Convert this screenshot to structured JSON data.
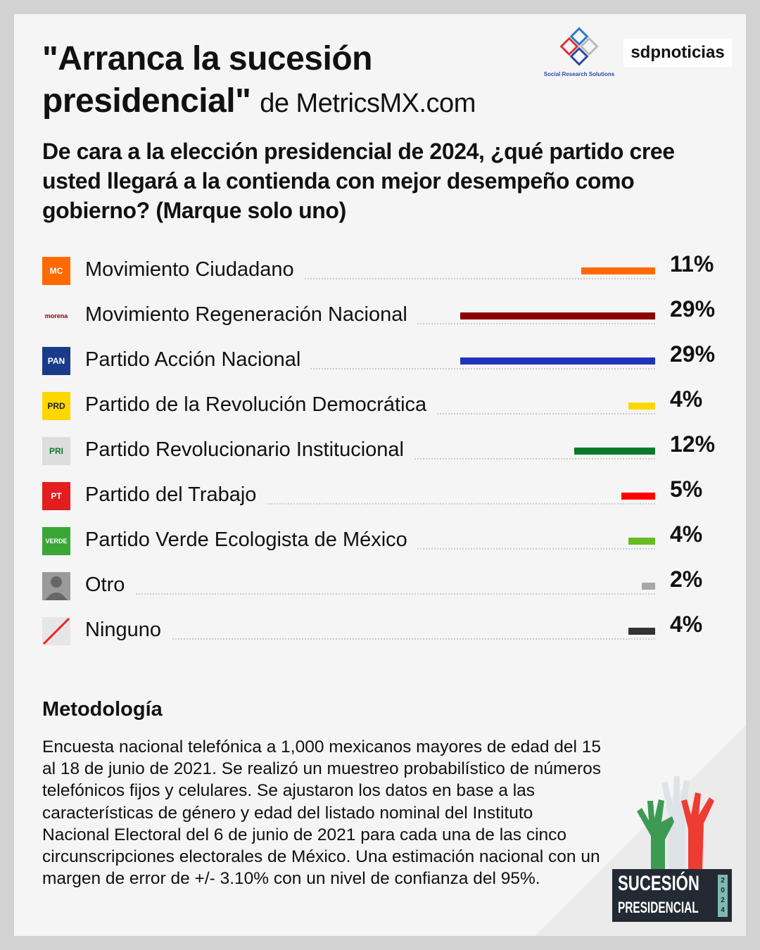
{
  "header": {
    "title_line1": "\"Arranca la sucesión",
    "title_line2": "presidencial\"",
    "source": "de MetricsMX.com",
    "logo_srs": "Social Research Solutions",
    "logo_sdp": "sdpnoticias"
  },
  "question": "De cara a la elección presidencial de 2024, ¿qué partido cree usted llegará a la contienda con mejor desempeño como gobierno? (Marque solo uno)",
  "chart_data": {
    "type": "bar",
    "orientation": "horizontal",
    "xlim": [
      0,
      29
    ],
    "categories": [
      "Movimiento Ciudadano",
      "Movimiento Regeneración Nacional",
      "Partido Acción Nacional",
      "Partido de la Revolución Democrática",
      "Partido Revolucionario Institucional",
      "Partido del Trabajo",
      "Partido Verde Ecologista de México",
      "Otro",
      "Ninguno"
    ],
    "values": [
      11,
      29,
      29,
      4,
      12,
      5,
      4,
      2,
      4
    ],
    "labels": [
      "11%",
      "29%",
      "29%",
      "4%",
      "12%",
      "5%",
      "4%",
      "2%",
      "4%"
    ],
    "colors": [
      "#ff6a00",
      "#8b0000",
      "#2233bb",
      "#ffd700",
      "#0a7a2a",
      "#ff0000",
      "#66bb22",
      "#a8a8a8",
      "#333333"
    ],
    "icons": [
      {
        "name": "mc-logo-icon",
        "text": "MC",
        "bg": "#ff6a00"
      },
      {
        "name": "morena-logo-icon",
        "text": "morena",
        "bg": "#f5f5f5"
      },
      {
        "name": "pan-logo-icon",
        "text": "PAN",
        "bg": "#1a3a8a"
      },
      {
        "name": "prd-logo-icon",
        "text": "PRD",
        "bg": "#ffd700"
      },
      {
        "name": "pri-logo-icon",
        "text": "PRI",
        "bg": "#ddd"
      },
      {
        "name": "pt-logo-icon",
        "text": "PT",
        "bg": "#e41e1e"
      },
      {
        "name": "verde-logo-icon",
        "text": "VERDE",
        "bg": "#3aa635"
      },
      {
        "name": "person-icon",
        "text": "",
        "bg": "#9a9a9a"
      },
      {
        "name": "slash-icon",
        "text": "",
        "bg": "#e6e6e6"
      }
    ]
  },
  "methodology": {
    "heading": "Metodología",
    "text": "Encuesta nacional telefónica a 1,000 mexicanos mayores de edad del 15 al 18 de junio de 2021. Se realizó un muestreo probabilístico de números telefónicos fijos y celulares. Se ajustaron los datos en base a las características de género y edad del listado nominal del Instituto Nacional Electoral del 6 de junio de 2021 para cada una de las cinco circunscripciones electorales de México. Una estimación nacional con un margen de error de +/- 3.10% con un nivel de confianza del 95%."
  },
  "badge": {
    "line1": "SUCESIÓN",
    "line2": "PRESIDENCIAL",
    "year": "2024"
  }
}
